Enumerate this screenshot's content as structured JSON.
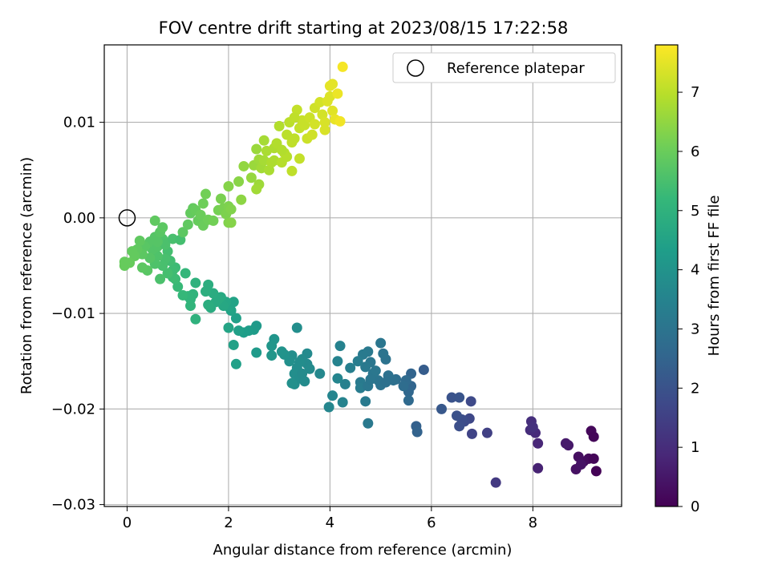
{
  "chart_data": {
    "type": "scatter",
    "title": "FOV centre drift starting at 2023/08/15 17:22:58",
    "xlabel": "Angular distance from reference (arcmin)",
    "ylabel": "Rotation from reference (arcmin)",
    "xlim": [
      -0.45,
      9.75
    ],
    "ylim": [
      -0.0302,
      0.0181
    ],
    "x_ticks": [
      0,
      2,
      4,
      6,
      8
    ],
    "x_tick_labels": [
      "0",
      "2",
      "4",
      "6",
      "8"
    ],
    "y_ticks": [
      -0.03,
      -0.02,
      -0.01,
      0.0,
      0.01
    ],
    "y_tick_labels": [
      "−0.03",
      "−0.02",
      "−0.01",
      "0.00",
      "0.01"
    ],
    "grid": true,
    "legend": {
      "position": "top-right",
      "entries": [
        {
          "label": "Reference platepar",
          "marker": "open-circle"
        }
      ]
    },
    "reference_point": {
      "x": 0,
      "y": 0
    },
    "colorbar": {
      "label": "Hours from first FF file",
      "colormap": "viridis",
      "range": [
        0,
        7.8
      ],
      "ticks": [
        0,
        1,
        2,
        3,
        4,
        5,
        6,
        7
      ],
      "tick_labels": [
        "0",
        "1",
        "2",
        "3",
        "4",
        "5",
        "6",
        "7"
      ]
    },
    "colormap_stops": [
      "#440154",
      "#482878",
      "#3e4989",
      "#31688e",
      "#26828e",
      "#1f9e89",
      "#35b779",
      "#6ece58",
      "#b5de2b",
      "#fde725"
    ],
    "points": [
      {
        "x": 9.15,
        "y": -0.0223,
        "t": 0.15
      },
      {
        "x": 9.2,
        "y": -0.0229,
        "t": 0.1
      },
      {
        "x": 9.25,
        "y": -0.0265,
        "t": 0.05
      },
      {
        "x": 9.1,
        "y": -0.0252,
        "t": 0.2
      },
      {
        "x": 9.2,
        "y": -0.0252,
        "t": 0.12
      },
      {
        "x": 9.0,
        "y": -0.0255,
        "t": 0.25
      },
      {
        "x": 8.9,
        "y": -0.025,
        "t": 0.3
      },
      {
        "x": 8.85,
        "y": -0.0263,
        "t": 0.35
      },
      {
        "x": 8.95,
        "y": -0.0258,
        "t": 0.4
      },
      {
        "x": 8.7,
        "y": -0.0238,
        "t": 0.5
      },
      {
        "x": 8.65,
        "y": -0.0236,
        "t": 0.55
      },
      {
        "x": 8.1,
        "y": -0.0262,
        "t": 0.75
      },
      {
        "x": 8.1,
        "y": -0.0236,
        "t": 0.85
      },
      {
        "x": 8.05,
        "y": -0.0225,
        "t": 0.95
      },
      {
        "x": 7.95,
        "y": -0.0222,
        "t": 1.0
      },
      {
        "x": 7.97,
        "y": -0.0213,
        "t": 1.05
      },
      {
        "x": 8.0,
        "y": -0.0219,
        "t": 1.1
      },
      {
        "x": 7.27,
        "y": -0.0277,
        "t": 1.3
      },
      {
        "x": 7.1,
        "y": -0.0225,
        "t": 1.5
      },
      {
        "x": 6.8,
        "y": -0.0226,
        "t": 1.6
      },
      {
        "x": 6.75,
        "y": -0.021,
        "t": 1.7
      },
      {
        "x": 6.78,
        "y": -0.0192,
        "t": 1.75
      },
      {
        "x": 6.65,
        "y": -0.0213,
        "t": 1.8
      },
      {
        "x": 6.6,
        "y": -0.0211,
        "t": 1.85
      },
      {
        "x": 6.55,
        "y": -0.0218,
        "t": 1.9
      },
      {
        "x": 6.5,
        "y": -0.0207,
        "t": 1.95
      },
      {
        "x": 6.4,
        "y": -0.0188,
        "t": 2.0
      },
      {
        "x": 6.55,
        "y": -0.0188,
        "t": 2.05
      },
      {
        "x": 6.2,
        "y": -0.02,
        "t": 2.15
      },
      {
        "x": 5.85,
        "y": -0.0159,
        "t": 2.3
      },
      {
        "x": 5.7,
        "y": -0.0218,
        "t": 2.4
      },
      {
        "x": 5.72,
        "y": -0.0224,
        "t": 2.45
      },
      {
        "x": 5.6,
        "y": -0.0163,
        "t": 2.5
      },
      {
        "x": 5.6,
        "y": -0.0176,
        "t": 2.55
      },
      {
        "x": 5.55,
        "y": -0.0182,
        "t": 2.6
      },
      {
        "x": 5.55,
        "y": -0.0191,
        "t": 2.65
      },
      {
        "x": 5.5,
        "y": -0.017,
        "t": 2.7
      },
      {
        "x": 5.45,
        "y": -0.0176,
        "t": 2.75
      },
      {
        "x": 5.3,
        "y": -0.0169,
        "t": 2.8
      },
      {
        "x": 5.25,
        "y": -0.017,
        "t": 2.85
      },
      {
        "x": 5.15,
        "y": -0.0165,
        "t": 2.9
      },
      {
        "x": 5.1,
        "y": -0.0148,
        "t": 2.95
      },
      {
        "x": 5.05,
        "y": -0.0142,
        "t": 3.0
      },
      {
        "x": 5.0,
        "y": -0.0131,
        "t": 3.05
      },
      {
        "x": 5.0,
        "y": -0.0175,
        "t": 2.95
      },
      {
        "x": 4.95,
        "y": -0.017,
        "t": 3.0
      },
      {
        "x": 5.1,
        "y": -0.0172,
        "t": 2.9
      },
      {
        "x": 4.85,
        "y": -0.0163,
        "t": 3.05
      },
      {
        "x": 4.8,
        "y": -0.0151,
        "t": 3.1
      },
      {
        "x": 4.75,
        "y": -0.014,
        "t": 3.15
      },
      {
        "x": 4.7,
        "y": -0.0156,
        "t": 3.15
      },
      {
        "x": 4.65,
        "y": -0.0143,
        "t": 3.2
      },
      {
        "x": 4.6,
        "y": -0.0172,
        "t": 3.2
      },
      {
        "x": 4.6,
        "y": -0.0178,
        "t": 3.25
      },
      {
        "x": 4.75,
        "y": -0.0176,
        "t": 3.1
      },
      {
        "x": 4.8,
        "y": -0.0169,
        "t": 3.05
      },
      {
        "x": 4.55,
        "y": -0.015,
        "t": 3.3
      },
      {
        "x": 4.7,
        "y": -0.0192,
        "t": 3.2
      },
      {
        "x": 4.75,
        "y": -0.0215,
        "t": 3.15
      },
      {
        "x": 4.9,
        "y": -0.016,
        "t": 3.1
      },
      {
        "x": 4.4,
        "y": -0.0157,
        "t": 3.35
      },
      {
        "x": 4.3,
        "y": -0.0174,
        "t": 3.4
      },
      {
        "x": 4.2,
        "y": -0.0134,
        "t": 3.45
      },
      {
        "x": 4.15,
        "y": -0.015,
        "t": 3.5
      },
      {
        "x": 4.15,
        "y": -0.0168,
        "t": 3.55
      },
      {
        "x": 4.05,
        "y": -0.0186,
        "t": 3.55
      },
      {
        "x": 4.25,
        "y": -0.0193,
        "t": 3.5
      },
      {
        "x": 3.98,
        "y": -0.0198,
        "t": 3.6
      },
      {
        "x": 3.8,
        "y": -0.0163,
        "t": 3.65
      },
      {
        "x": 3.55,
        "y": -0.0142,
        "t": 3.7
      },
      {
        "x": 3.55,
        "y": -0.0153,
        "t": 3.7
      },
      {
        "x": 3.6,
        "y": -0.0158,
        "t": 3.75
      },
      {
        "x": 3.45,
        "y": -0.0148,
        "t": 3.75
      },
      {
        "x": 3.4,
        "y": -0.0151,
        "t": 3.8
      },
      {
        "x": 3.35,
        "y": -0.0157,
        "t": 3.8
      },
      {
        "x": 3.3,
        "y": -0.0163,
        "t": 3.85
      },
      {
        "x": 3.3,
        "y": -0.0174,
        "t": 3.85
      },
      {
        "x": 3.4,
        "y": -0.0168,
        "t": 3.8
      },
      {
        "x": 3.25,
        "y": -0.0144,
        "t": 3.85
      },
      {
        "x": 3.2,
        "y": -0.015,
        "t": 3.9
      },
      {
        "x": 3.35,
        "y": -0.0115,
        "t": 3.85
      },
      {
        "x": 3.45,
        "y": -0.0163,
        "t": 3.75
      },
      {
        "x": 3.25,
        "y": -0.0173,
        "t": 3.9
      },
      {
        "x": 3.5,
        "y": -0.0171,
        "t": 3.75
      },
      {
        "x": 3.1,
        "y": -0.0143,
        "t": 3.95
      },
      {
        "x": 3.05,
        "y": -0.014,
        "t": 4.0
      },
      {
        "x": 2.9,
        "y": -0.0127,
        "t": 4.05
      },
      {
        "x": 2.85,
        "y": -0.0134,
        "t": 4.1
      },
      {
        "x": 2.85,
        "y": -0.0144,
        "t": 4.1
      },
      {
        "x": 2.55,
        "y": -0.0113,
        "t": 4.2
      },
      {
        "x": 2.55,
        "y": -0.0141,
        "t": 4.2
      },
      {
        "x": 2.5,
        "y": -0.0117,
        "t": 4.25
      },
      {
        "x": 2.4,
        "y": -0.0118,
        "t": 4.3
      },
      {
        "x": 2.3,
        "y": -0.012,
        "t": 4.35
      },
      {
        "x": 2.2,
        "y": -0.0118,
        "t": 4.4
      },
      {
        "x": 2.15,
        "y": -0.0105,
        "t": 4.4
      },
      {
        "x": 2.1,
        "y": -0.0133,
        "t": 4.45
      },
      {
        "x": 2.15,
        "y": -0.0153,
        "t": 4.4
      },
      {
        "x": 2.05,
        "y": -0.0097,
        "t": 4.5
      },
      {
        "x": 2.0,
        "y": -0.0093,
        "t": 4.55
      },
      {
        "x": 2.0,
        "y": -0.0115,
        "t": 4.55
      },
      {
        "x": 2.1,
        "y": -0.0088,
        "t": 4.5
      },
      {
        "x": 1.95,
        "y": -0.0088,
        "t": 4.6
      },
      {
        "x": 1.9,
        "y": -0.0092,
        "t": 4.65
      },
      {
        "x": 1.85,
        "y": -0.0083,
        "t": 4.7
      },
      {
        "x": 1.8,
        "y": -0.0085,
        "t": 4.75
      },
      {
        "x": 1.75,
        "y": -0.0088,
        "t": 4.75
      },
      {
        "x": 1.7,
        "y": -0.0079,
        "t": 4.8
      },
      {
        "x": 1.65,
        "y": -0.0094,
        "t": 4.8
      },
      {
        "x": 1.6,
        "y": -0.0091,
        "t": 4.85
      },
      {
        "x": 1.55,
        "y": -0.0077,
        "t": 4.9
      },
      {
        "x": 1.6,
        "y": -0.007,
        "t": 4.85
      },
      {
        "x": 1.35,
        "y": -0.0068,
        "t": 5.0
      },
      {
        "x": 1.35,
        "y": -0.0106,
        "t": 5.0
      },
      {
        "x": 1.3,
        "y": -0.008,
        "t": 5.05
      },
      {
        "x": 1.25,
        "y": -0.0085,
        "t": 5.05
      },
      {
        "x": 1.25,
        "y": -0.0092,
        "t": 5.1
      },
      {
        "x": 1.2,
        "y": -0.0082,
        "t": 5.1
      },
      {
        "x": 1.15,
        "y": -0.0058,
        "t": 5.15
      },
      {
        "x": 1.1,
        "y": -0.0081,
        "t": 5.2
      },
      {
        "x": 1.0,
        "y": -0.0072,
        "t": 5.25
      },
      {
        "x": 0.95,
        "y": -0.0052,
        "t": 5.3
      },
      {
        "x": 0.95,
        "y": -0.0064,
        "t": 5.3
      },
      {
        "x": 0.9,
        "y": -0.0062,
        "t": 5.35
      },
      {
        "x": 0.85,
        "y": -0.0045,
        "t": 5.4
      },
      {
        "x": 0.9,
        "y": -0.0055,
        "t": 5.35
      },
      {
        "x": 0.8,
        "y": -0.0058,
        "t": 5.45
      },
      {
        "x": 0.8,
        "y": -0.0035,
        "t": 5.45
      },
      {
        "x": 0.75,
        "y": -0.0043,
        "t": 5.5
      },
      {
        "x": 0.7,
        "y": -0.005,
        "t": 5.5
      },
      {
        "x": 0.65,
        "y": -0.0064,
        "t": 5.55
      },
      {
        "x": 0.6,
        "y": -0.004,
        "t": 5.6
      },
      {
        "x": 0.55,
        "y": -0.0048,
        "t": 5.6
      },
      {
        "x": 0.5,
        "y": -0.0033,
        "t": 5.65
      },
      {
        "x": 0.45,
        "y": -0.0025,
        "t": 5.7
      },
      {
        "x": 0.45,
        "y": -0.0042,
        "t": 5.7
      },
      {
        "x": 0.4,
        "y": -0.0055,
        "t": 5.75
      },
      {
        "x": 0.35,
        "y": -0.003,
        "t": 5.75
      },
      {
        "x": 0.3,
        "y": -0.0052,
        "t": 5.8
      },
      {
        "x": 0.3,
        "y": -0.0038,
        "t": 5.8
      },
      {
        "x": 0.25,
        "y": -0.0024,
        "t": 5.85
      },
      {
        "x": 0.2,
        "y": -0.0033,
        "t": 5.85
      },
      {
        "x": 0.15,
        "y": -0.004,
        "t": 5.9
      },
      {
        "x": 0.1,
        "y": -0.0035,
        "t": 5.9
      },
      {
        "x": 0.05,
        "y": -0.0047,
        "t": 5.95
      },
      {
        "x": -0.05,
        "y": -0.005,
        "t": 5.95
      },
      {
        "x": -0.05,
        "y": -0.0046,
        "t": 5.95
      },
      {
        "x": 0.6,
        "y": -0.003,
        "t": 5.65
      },
      {
        "x": 0.7,
        "y": -0.0022,
        "t": 5.6
      },
      {
        "x": 0.75,
        "y": -0.0028,
        "t": 5.55
      },
      {
        "x": 0.9,
        "y": -0.0022,
        "t": 5.5
      },
      {
        "x": 1.05,
        "y": -0.0023,
        "t": 5.45
      },
      {
        "x": 0.55,
        "y": -0.002,
        "t": 5.7
      },
      {
        "x": 0.6,
        "y": -0.0025,
        "t": 5.7
      },
      {
        "x": 0.65,
        "y": -0.0015,
        "t": 5.75
      },
      {
        "x": 0.7,
        "y": -0.001,
        "t": 5.8
      },
      {
        "x": 0.55,
        "y": -0.0003,
        "t": 5.85
      },
      {
        "x": 1.1,
        "y": -0.0015,
        "t": 5.8
      },
      {
        "x": 1.2,
        "y": -0.0007,
        "t": 5.85
      },
      {
        "x": 1.25,
        "y": 0.0005,
        "t": 5.9
      },
      {
        "x": 1.3,
        "y": 0.001,
        "t": 5.9
      },
      {
        "x": 1.35,
        "y": 0.0008,
        "t": 5.95
      },
      {
        "x": 1.4,
        "y": -0.0003,
        "t": 5.95
      },
      {
        "x": 1.5,
        "y": -0.0008,
        "t": 6.0
      },
      {
        "x": 1.45,
        "y": 0.0003,
        "t": 6.0
      },
      {
        "x": 1.5,
        "y": 0.0015,
        "t": 6.05
      },
      {
        "x": 1.55,
        "y": 0.0025,
        "t": 6.1
      },
      {
        "x": 1.6,
        "y": -0.0002,
        "t": 6.05
      },
      {
        "x": 1.7,
        "y": -0.0003,
        "t": 6.1
      },
      {
        "x": 1.8,
        "y": 0.0008,
        "t": 6.15
      },
      {
        "x": 1.85,
        "y": 0.002,
        "t": 6.2
      },
      {
        "x": 1.9,
        "y": 0.001,
        "t": 6.2
      },
      {
        "x": 1.95,
        "y": 0.0004,
        "t": 6.25
      },
      {
        "x": 2.0,
        "y": 0.0012,
        "t": 6.25
      },
      {
        "x": 2.05,
        "y": 0.0009,
        "t": 6.3
      },
      {
        "x": 2.0,
        "y": -0.0005,
        "t": 6.3
      },
      {
        "x": 2.05,
        "y": -0.0005,
        "t": 6.35
      },
      {
        "x": 2.0,
        "y": 0.0033,
        "t": 6.35
      },
      {
        "x": 2.2,
        "y": 0.0038,
        "t": 6.4
      },
      {
        "x": 2.25,
        "y": 0.0019,
        "t": 6.45
      },
      {
        "x": 2.3,
        "y": 0.0054,
        "t": 6.5
      },
      {
        "x": 2.45,
        "y": 0.0042,
        "t": 6.55
      },
      {
        "x": 2.5,
        "y": 0.0055,
        "t": 6.6
      },
      {
        "x": 2.55,
        "y": 0.0072,
        "t": 6.6
      },
      {
        "x": 2.6,
        "y": 0.0061,
        "t": 6.65
      },
      {
        "x": 2.6,
        "y": 0.0035,
        "t": 6.65
      },
      {
        "x": 2.55,
        "y": 0.003,
        "t": 6.7
      },
      {
        "x": 2.65,
        "y": 0.0052,
        "t": 6.7
      },
      {
        "x": 2.7,
        "y": 0.006,
        "t": 6.75
      },
      {
        "x": 2.7,
        "y": 0.0081,
        "t": 6.75
      },
      {
        "x": 2.75,
        "y": 0.007,
        "t": 6.8
      },
      {
        "x": 2.8,
        "y": 0.005,
        "t": 6.8
      },
      {
        "x": 2.9,
        "y": 0.006,
        "t": 6.85
      },
      {
        "x": 2.9,
        "y": 0.0073,
        "t": 6.85
      },
      {
        "x": 2.95,
        "y": 0.0078,
        "t": 6.9
      },
      {
        "x": 3.0,
        "y": 0.0096,
        "t": 6.9
      },
      {
        "x": 3.05,
        "y": 0.0058,
        "t": 6.95
      },
      {
        "x": 3.1,
        "y": 0.0068,
        "t": 6.95
      },
      {
        "x": 3.15,
        "y": 0.0087,
        "t": 7.0
      },
      {
        "x": 3.2,
        "y": 0.01,
        "t": 7.0
      },
      {
        "x": 3.25,
        "y": 0.0079,
        "t": 7.05
      },
      {
        "x": 3.3,
        "y": 0.0083,
        "t": 7.05
      },
      {
        "x": 3.35,
        "y": 0.0113,
        "t": 7.1
      },
      {
        "x": 3.4,
        "y": 0.0094,
        "t": 7.1
      },
      {
        "x": 3.45,
        "y": 0.0102,
        "t": 7.15
      },
      {
        "x": 3.5,
        "y": 0.0097,
        "t": 7.15
      },
      {
        "x": 3.55,
        "y": 0.0083,
        "t": 7.2
      },
      {
        "x": 3.6,
        "y": 0.0105,
        "t": 7.2
      },
      {
        "x": 3.65,
        "y": 0.0087,
        "t": 7.25
      },
      {
        "x": 3.7,
        "y": 0.0115,
        "t": 7.25
      },
      {
        "x": 3.8,
        "y": 0.0121,
        "t": 7.3
      },
      {
        "x": 3.85,
        "y": 0.0108,
        "t": 7.3
      },
      {
        "x": 3.9,
        "y": 0.01,
        "t": 7.35
      },
      {
        "x": 3.95,
        "y": 0.0122,
        "t": 7.4
      },
      {
        "x": 4.0,
        "y": 0.0127,
        "t": 7.4
      },
      {
        "x": 4.05,
        "y": 0.0112,
        "t": 7.45
      },
      {
        "x": 4.0,
        "y": 0.0138,
        "t": 7.5
      },
      {
        "x": 4.05,
        "y": 0.014,
        "t": 7.5
      },
      {
        "x": 4.1,
        "y": 0.0103,
        "t": 7.55
      },
      {
        "x": 4.15,
        "y": 0.013,
        "t": 7.6
      },
      {
        "x": 4.2,
        "y": 0.0101,
        "t": 7.65
      },
      {
        "x": 4.25,
        "y": 0.0158,
        "t": 7.7
      },
      {
        "x": 3.7,
        "y": 0.0098,
        "t": 7.3
      },
      {
        "x": 3.9,
        "y": 0.0092,
        "t": 7.35
      },
      {
        "x": 3.3,
        "y": 0.0105,
        "t": 7.05
      },
      {
        "x": 3.15,
        "y": 0.0064,
        "t": 6.95
      },
      {
        "x": 3.05,
        "y": 0.0071,
        "t": 6.9
      },
      {
        "x": 2.85,
        "y": 0.0058,
        "t": 6.85
      },
      {
        "x": 3.4,
        "y": 0.0062,
        "t": 7.1
      },
      {
        "x": 3.25,
        "y": 0.0049,
        "t": 7.05
      }
    ]
  }
}
